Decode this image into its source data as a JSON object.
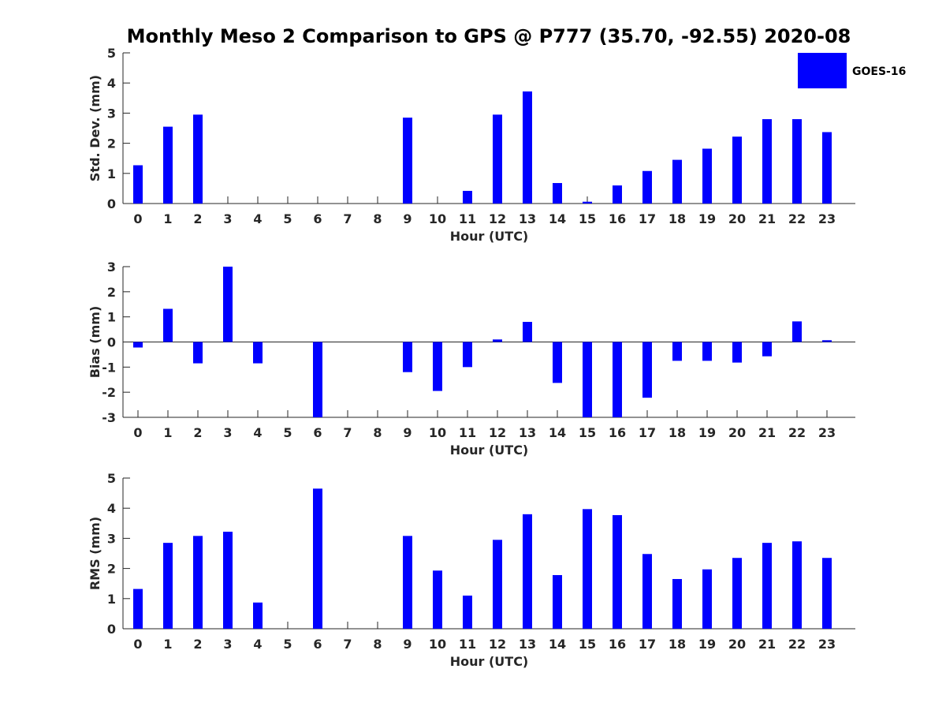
{
  "figure_title": "Monthly Meso 2 Comparison to GPS @ P777 (35.70, -92.55) 2020-08",
  "legend": {
    "label": "GOES-16",
    "color": "#0000ff"
  },
  "chart_data": [
    {
      "type": "bar",
      "name": "std-dev",
      "title": "",
      "xlabel": "Hour (UTC)",
      "ylabel": "Std. Dev. (mm)",
      "ylim": [
        0,
        5
      ],
      "yticks": [
        0,
        1,
        2,
        3,
        4,
        5
      ],
      "categories": [
        "0",
        "1",
        "2",
        "3",
        "4",
        "5",
        "6",
        "7",
        "8",
        "9",
        "10",
        "11",
        "12",
        "13",
        "14",
        "15",
        "16",
        "17",
        "18",
        "19",
        "20",
        "21",
        "22",
        "23"
      ],
      "series": [
        {
          "name": "GOES-16",
          "values": [
            1.27,
            2.55,
            2.95,
            null,
            null,
            null,
            null,
            null,
            null,
            2.85,
            null,
            0.42,
            2.95,
            3.72,
            0.68,
            0.06,
            0.6,
            1.08,
            1.45,
            1.82,
            2.22,
            2.8,
            2.8,
            2.37
          ]
        }
      ]
    },
    {
      "type": "bar",
      "name": "bias",
      "title": "",
      "xlabel": "Hour (UTC)",
      "ylabel": "Bias (mm)",
      "ylim": [
        -3,
        3
      ],
      "yticks": [
        -3,
        -2,
        -1,
        0,
        1,
        2,
        3
      ],
      "categories": [
        "0",
        "1",
        "2",
        "3",
        "4",
        "5",
        "6",
        "7",
        "8",
        "9",
        "10",
        "11",
        "12",
        "13",
        "14",
        "15",
        "16",
        "17",
        "18",
        "19",
        "20",
        "21",
        "22",
        "23"
      ],
      "series": [
        {
          "name": "GOES-16",
          "values": [
            -0.22,
            1.32,
            -0.85,
            3.0,
            -0.85,
            null,
            -3.0,
            null,
            null,
            -1.2,
            -1.95,
            -1.0,
            0.1,
            0.8,
            -1.63,
            -3.0,
            -3.0,
            -2.22,
            -0.75,
            -0.75,
            -0.82,
            -0.57,
            0.82,
            0.07
          ]
        }
      ]
    },
    {
      "type": "bar",
      "name": "rms",
      "title": "",
      "xlabel": "Hour (UTC)",
      "ylabel": "RMS (mm)",
      "ylim": [
        0,
        5
      ],
      "yticks": [
        0,
        1,
        2,
        3,
        4,
        5
      ],
      "categories": [
        "0",
        "1",
        "2",
        "3",
        "4",
        "5",
        "6",
        "7",
        "8",
        "9",
        "10",
        "11",
        "12",
        "13",
        "14",
        "15",
        "16",
        "17",
        "18",
        "19",
        "20",
        "21",
        "22",
        "23"
      ],
      "series": [
        {
          "name": "GOES-16",
          "values": [
            1.32,
            2.85,
            3.08,
            3.22,
            0.87,
            null,
            4.65,
            null,
            null,
            3.08,
            1.93,
            1.1,
            2.95,
            3.8,
            1.78,
            3.97,
            3.77,
            2.48,
            1.65,
            1.97,
            2.35,
            2.85,
            2.9,
            2.35
          ]
        }
      ]
    }
  ]
}
